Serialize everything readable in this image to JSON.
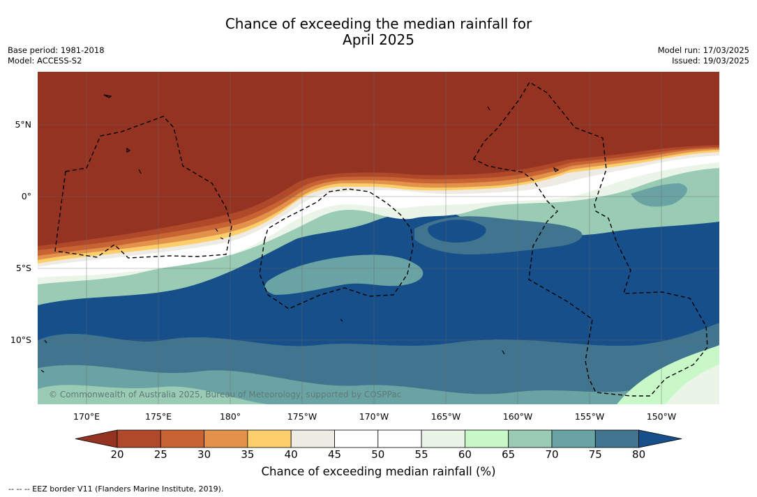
{
  "title_line1": "Chance of exceeding the median rainfall for",
  "title_line2": "April 2025",
  "base_period": "Base period: 1981-2018",
  "model": "Model: ACCESS-S2",
  "model_run": "Model run: 17/03/2025",
  "issued": "Issued: 19/03/2025",
  "lat_labels": [
    "5°N",
    "0°",
    "5°S",
    "10°S"
  ],
  "lon_labels": [
    "170°E",
    "175°E",
    "180°",
    "175°W",
    "170°W",
    "165°W",
    "160°W",
    "155°W",
    "150°W"
  ],
  "colorbar": {
    "ticks": [
      "20",
      "25",
      "30",
      "35",
      "40",
      "45",
      "50",
      "55",
      "60",
      "65",
      "70",
      "75",
      "80"
    ],
    "colors": [
      "#953322",
      "#b0482a",
      "#c86434",
      "#e2924a",
      "#fdcf6c",
      "#eeebe4",
      "#ffffff",
      "#ffffff",
      "#eaf5e8",
      "#c8f8c8",
      "#9acbb4",
      "#6aa3a3",
      "#41758f",
      "#164f89"
    ],
    "title": "Chance of exceeding median rainfall (%)"
  },
  "copyright": "© Commonwealth of Australia 2025, Bureau of Meteorology, supported by COSPPac",
  "footnote": "-- -- -- EEZ border V11 (Flanders Marine Institute, 2019)."
}
